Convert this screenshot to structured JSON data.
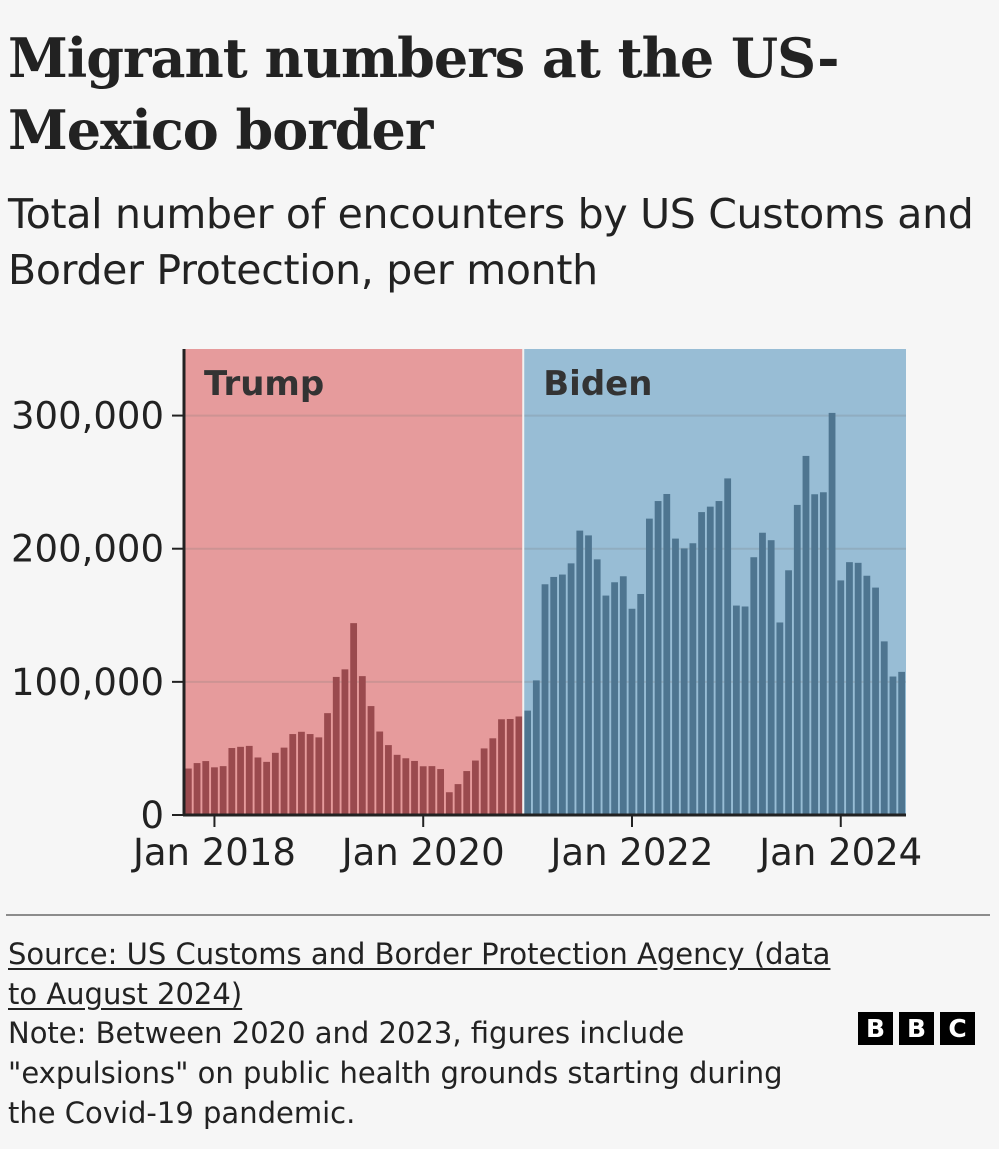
{
  "header": {
    "title": "Migrant numbers at the US-Mexico border",
    "subtitle": "Total number of encounters by US Customs and Border Protection, per month"
  },
  "footer": {
    "source": "Source: US Customs and Border Protection Agency (data to August 2024)",
    "note": "Note: Between 2020 and 2023, figures include \"expulsions\" on public health grounds starting during the Covid-19 pandemic.",
    "logo_letters": [
      "B",
      "B",
      "C"
    ]
  },
  "chart_data": {
    "type": "bar",
    "title": "Migrant numbers at the US-Mexico border",
    "subtitle": "Total number of encounters by US Customs and Border Protection, per month",
    "xlabel": "",
    "ylabel": "",
    "x_start": "2017-10",
    "x_end": "2024-08",
    "ylim": [
      0,
      350000
    ],
    "y_ticks": [
      0,
      100000,
      200000,
      300000
    ],
    "y_tick_labels": [
      "0",
      "100,000",
      "200,000",
      "300,000"
    ],
    "x_ticks": [
      "2018-01",
      "2020-01",
      "2022-01",
      "2024-01"
    ],
    "x_tick_labels": [
      "Jan 2018",
      "Jan 2020",
      "Jan 2022",
      "Jan 2024"
    ],
    "gridlines": true,
    "periods": [
      {
        "name": "Trump",
        "start": "2017-10",
        "end": "2021-01",
        "color": "#e69b9c",
        "bar_color": "#9a4a4e"
      },
      {
        "name": "Biden",
        "start": "2021-01",
        "end": "2024-08",
        "color": "#98bdd5",
        "bar_color": "#4e7590"
      }
    ],
    "series": [
      {
        "start": "2017-10",
        "values": [
          34900,
          39000,
          40500,
          35800,
          36700,
          50300,
          51200,
          51900,
          43200,
          39900,
          46700,
          50600,
          60800,
          62500,
          60800,
          58300,
          76500,
          103700,
          109400,
          144100,
          104300,
          81800,
          62700,
          52500,
          45200,
          42600,
          40600,
          36600,
          36700,
          34500,
          17100,
          23200,
          33000,
          40900,
          50000,
          57600,
          71900,
          72100,
          74000,
          78400,
          101100,
          173300,
          178800,
          180600,
          189000,
          213600,
          210000,
          192000,
          164800,
          174800,
          179300,
          154900,
          166000,
          222600,
          235800,
          241100,
          207600,
          200200,
          204100,
          227500,
          231600,
          235800,
          252800,
          157300,
          156600,
          193600,
          212000,
          206400,
          144600,
          183800,
          232900,
          269700,
          240900,
          242400,
          302000,
          176200,
          189900,
          189400,
          179700,
          170800,
          130400,
          104000,
          107500
        ]
      }
    ]
  }
}
